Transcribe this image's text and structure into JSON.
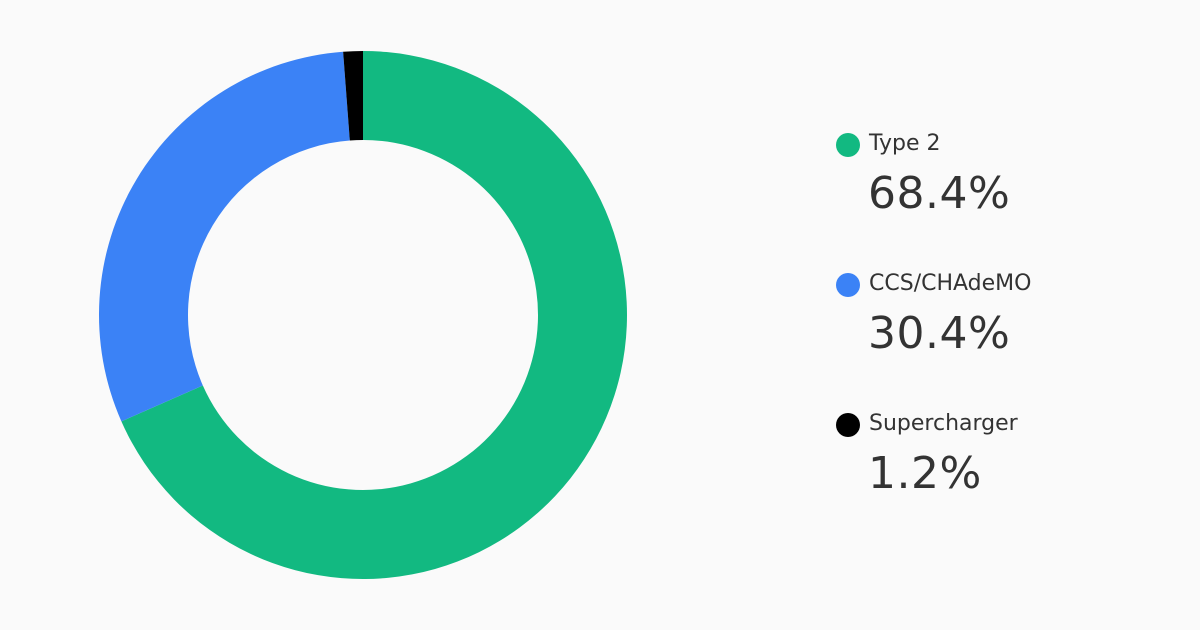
{
  "chart_data": {
    "type": "pie",
    "donut": true,
    "categories": [
      "Type 2",
      "CCS/CHAdeMO",
      "Supercharger"
    ],
    "values": [
      68.4,
      30.4,
      1.2
    ],
    "colors": [
      "#12b981",
      "#3b82f6",
      "#000000"
    ],
    "value_labels": [
      "68.4%",
      "30.4%",
      "1.2%"
    ],
    "start_angle_deg": 0,
    "direction": "clockwise",
    "legend_position": "right"
  },
  "legend": {
    "items": [
      {
        "label": "Type 2",
        "value": "68.4%",
        "color": "#12b981"
      },
      {
        "label": "CCS/CHAdeMO",
        "value": "30.4%",
        "color": "#3b82f6"
      },
      {
        "label": "Supercharger",
        "value": "1.2%",
        "color": "#000000"
      }
    ]
  }
}
